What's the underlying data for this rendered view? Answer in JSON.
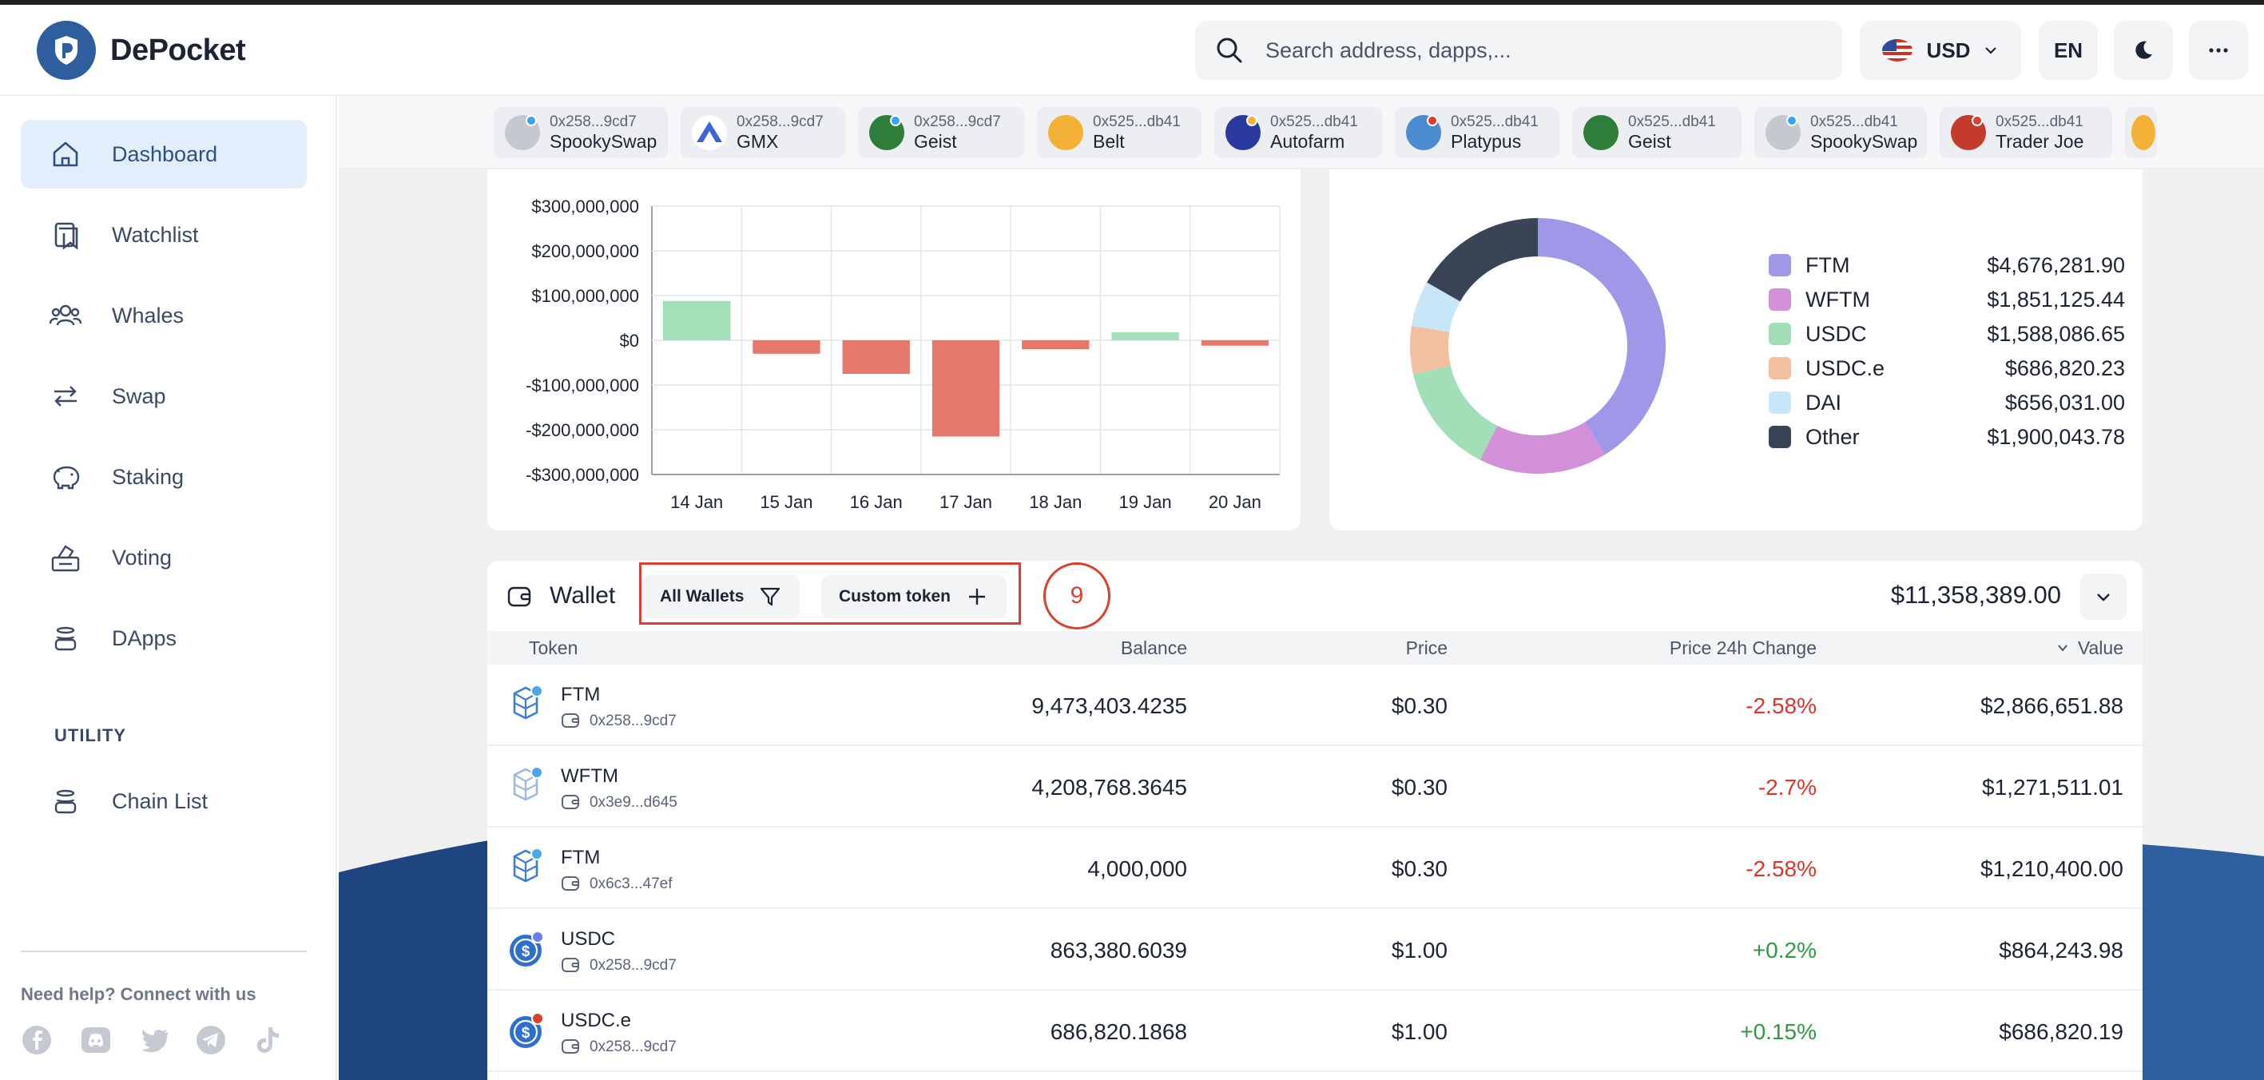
{
  "app": {
    "name": "DePocket"
  },
  "header": {
    "search_placeholder": "Search address, dapps,...",
    "currency": "USD",
    "language": "EN"
  },
  "sidebar": {
    "items": [
      {
        "label": "Dashboard",
        "icon": "home-icon",
        "active": true
      },
      {
        "label": "Watchlist",
        "icon": "bookmark-icon"
      },
      {
        "label": "Whales",
        "icon": "users-icon"
      },
      {
        "label": "Swap",
        "icon": "swap-icon"
      },
      {
        "label": "Staking",
        "icon": "piggy-bank-icon"
      },
      {
        "label": "Voting",
        "icon": "ballot-box-icon"
      },
      {
        "label": "DApps",
        "icon": "stack-icon"
      }
    ],
    "utility_heading": "UTILITY",
    "utility_items": [
      {
        "label": "Chain List",
        "icon": "stack-icon"
      }
    ],
    "help_text": "Need help? Connect with us",
    "socials": [
      "facebook-icon",
      "discord-icon",
      "twitter-icon",
      "telegram-icon",
      "tiktok-icon"
    ]
  },
  "protocols": [
    {
      "address": "0x258...9cd7",
      "name": "SpookySwap",
      "color": "#b9bcc4"
    },
    {
      "address": "0x258...9cd7",
      "name": "GMX",
      "color": "#3e62d8"
    },
    {
      "address": "0x258...9cd7",
      "name": "Geist",
      "color": "#2f7d3a"
    },
    {
      "address": "0x525...db41",
      "name": "Belt",
      "color": "#f3b235"
    },
    {
      "address": "0x525...db41",
      "name": "Autofarm",
      "color": "#2b3a9e"
    },
    {
      "address": "0x525...db41",
      "name": "Platypus",
      "color": "#4a8ccf"
    },
    {
      "address": "0x525...db41",
      "name": "Geist",
      "color": "#2f7d3a"
    },
    {
      "address": "0x525...db41",
      "name": "SpookySwap",
      "color": "#b9bcc4"
    },
    {
      "address": "0x525...db41",
      "name": "Trader Joe",
      "color": "#c23b2d"
    }
  ],
  "chart_data": [
    {
      "type": "bar",
      "categories": [
        "14 Jan",
        "15 Jan",
        "16 Jan",
        "17 Jan",
        "18 Jan",
        "19 Jan",
        "20 Jan"
      ],
      "values": [
        88000000,
        -30000000,
        -75000000,
        -215000000,
        -20000000,
        18000000,
        -12000000
      ],
      "ylim": [
        -300000000,
        300000000
      ],
      "yticks": [
        "$300,000,000",
        "$200,000,000",
        "$100,000,000",
        "$0",
        "-$100,000,000",
        "-$200,000,000",
        "-$300,000,000"
      ],
      "colors": {
        "positive": "#a3dfb8",
        "negative": "#e5776c"
      },
      "grid": true
    },
    {
      "type": "pie",
      "labels": [
        "FTM",
        "WFTM",
        "USDC",
        "USDC.e",
        "DAI",
        "Other"
      ],
      "values": [
        4676281.9,
        1851125.44,
        1588086.65,
        686820.23,
        656031.0,
        1900043.78
      ],
      "value_labels": [
        "$4,676,281.90",
        "$1,851,125.44",
        "$1,588,086.65",
        "$686,820.23",
        "$656,031.00",
        "$1,900,043.78"
      ],
      "colors": [
        "#9f97e8",
        "#d290d8",
        "#a2dfb9",
        "#f2bfa0",
        "#c7e6f7",
        "#3a4457"
      ],
      "legend": "right"
    }
  ],
  "wallet": {
    "title": "Wallet",
    "filter_label": "All Wallets",
    "custom_label": "Custom token",
    "annotation": "9",
    "total": "$11,358,389.00",
    "columns": [
      "Token",
      "Balance",
      "Price",
      "Price 24h Change",
      "Value"
    ],
    "rows": [
      {
        "token": "FTM",
        "address": "0x258...9cd7",
        "balance": "9,473,403.4235",
        "price": "$0.30",
        "change": "-2.58%",
        "trend": "neg",
        "value": "$2,866,651.88",
        "icon": "fantom-icon"
      },
      {
        "token": "WFTM",
        "address": "0x3e9...d645",
        "balance": "4,208,768.3645",
        "price": "$0.30",
        "change": "-2.7%",
        "trend": "neg",
        "value": "$1,271,511.01",
        "icon": "fantom-icon"
      },
      {
        "token": "FTM",
        "address": "0x6c3...47ef",
        "balance": "4,000,000",
        "price": "$0.30",
        "change": "-2.58%",
        "trend": "neg",
        "value": "$1,210,400.00",
        "icon": "fantom-icon"
      },
      {
        "token": "USDC",
        "address": "0x258...9cd7",
        "balance": "863,380.6039",
        "price": "$1.00",
        "change": "+0.2%",
        "trend": "pos",
        "value": "$864,243.98",
        "icon": "usdc-icon"
      },
      {
        "token": "USDC.e",
        "address": "0x258...9cd7",
        "balance": "686,820.1868",
        "price": "$1.00",
        "change": "+0.15%",
        "trend": "pos",
        "value": "$686,820.19",
        "icon": "usdc-icon"
      }
    ]
  }
}
